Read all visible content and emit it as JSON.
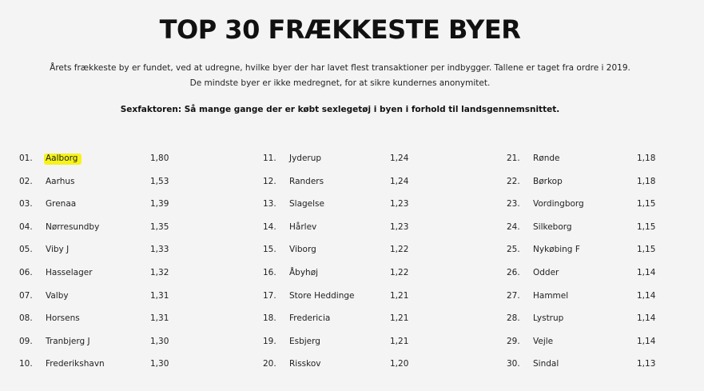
{
  "title": "TOP 30 FRÆKKESTE BYER",
  "intro_line1": "Årets frækkeste by er fundet, ved at udregne, hvilke byer der har lavet flest transaktioner per indbygger. Tallene er taget fra ordre i 2019.",
  "intro_line2": "De mindste byer er ikke medregnet, for at sikre kundernes anonymitet.",
  "factor_note": "Sexfaktoren: Så mange gange der er købt sexlegetøj i byen i forhold til landsgennemsnittet.",
  "highlight_color": "#f6f31a",
  "columns": [
    [
      {
        "rank": "01.",
        "city": "Aalborg",
        "value": "1,80",
        "highlighted": true
      },
      {
        "rank": "02.",
        "city": "Aarhus",
        "value": "1,53"
      },
      {
        "rank": "03.",
        "city": "Grenaa",
        "value": "1,39"
      },
      {
        "rank": "04.",
        "city": "Nørresundby",
        "value": "1,35"
      },
      {
        "rank": "05.",
        "city": "Viby J",
        "value": "1,33"
      },
      {
        "rank": "06.",
        "city": "Hasselager",
        "value": "1,32"
      },
      {
        "rank": "07.",
        "city": "Valby",
        "value": "1,31"
      },
      {
        "rank": "08.",
        "city": "Horsens",
        "value": "1,31"
      },
      {
        "rank": "09.",
        "city": "Tranbjerg J",
        "value": "1,30"
      },
      {
        "rank": "10.",
        "city": "Frederikshavn",
        "value": "1,30"
      }
    ],
    [
      {
        "rank": "11.",
        "city": "Jyderup",
        "value": "1,24"
      },
      {
        "rank": "12.",
        "city": "Randers",
        "value": "1,24"
      },
      {
        "rank": "13.",
        "city": "Slagelse",
        "value": "1,23"
      },
      {
        "rank": "14.",
        "city": "Hårlev",
        "value": "1,23"
      },
      {
        "rank": "15.",
        "city": "Viborg",
        "value": "1,22"
      },
      {
        "rank": "16.",
        "city": "Åbyhøj",
        "value": "1,22"
      },
      {
        "rank": "17.",
        "city": "Store Heddinge",
        "value": "1,21"
      },
      {
        "rank": "18.",
        "city": "Fredericia",
        "value": "1,21"
      },
      {
        "rank": "19.",
        "city": "Esbjerg",
        "value": "1,21"
      },
      {
        "rank": "20.",
        "city": "Risskov",
        "value": "1,20"
      }
    ],
    [
      {
        "rank": "21.",
        "city": "Rønde",
        "value": "1,18"
      },
      {
        "rank": "22.",
        "city": "Børkop",
        "value": "1,18"
      },
      {
        "rank": "23.",
        "city": "Vordingborg",
        "value": "1,15"
      },
      {
        "rank": "24.",
        "city": "Silkeborg",
        "value": "1,15"
      },
      {
        "rank": "25.",
        "city": "Nykøbing F",
        "value": "1,15"
      },
      {
        "rank": "26.",
        "city": "Odder",
        "value": "1,14"
      },
      {
        "rank": "27.",
        "city": "Hammel",
        "value": "1,14"
      },
      {
        "rank": "28.",
        "city": "Lystrup",
        "value": "1,14"
      },
      {
        "rank": "29.",
        "city": "Vejle",
        "value": "1,14"
      },
      {
        "rank": "30.",
        "city": "Sindal",
        "value": "1,13"
      }
    ]
  ]
}
